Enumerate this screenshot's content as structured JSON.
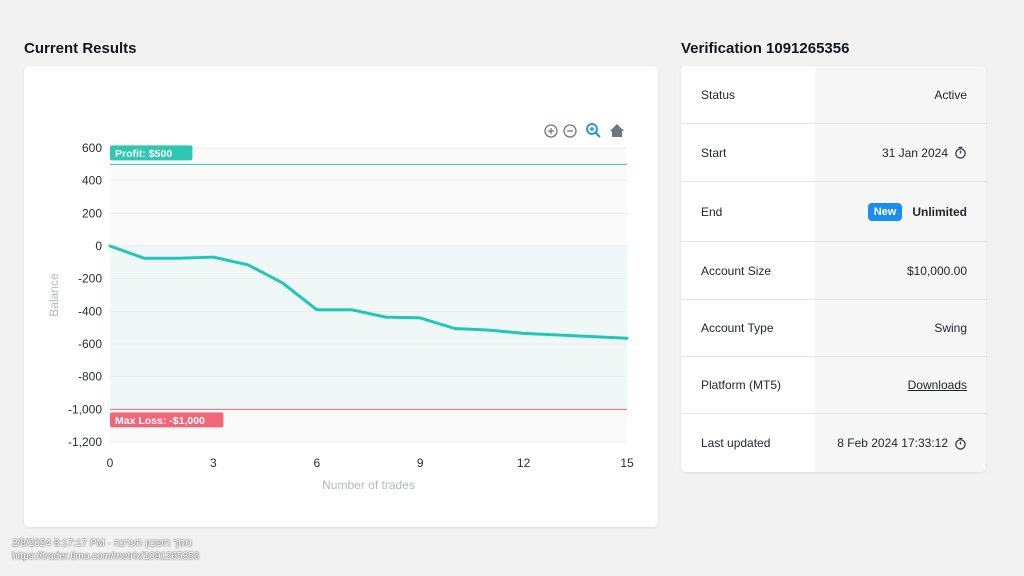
{
  "sections": {
    "results_title": "Current Results",
    "verification_title": "Verification 1091265356"
  },
  "toolbar": {
    "icons": [
      "zoom-in-icon",
      "zoom-out-icon",
      "zoom-select-icon",
      "home-reset-icon"
    ]
  },
  "chart_data": {
    "type": "line",
    "x": [
      0,
      1,
      2,
      3,
      4,
      5,
      6,
      7,
      8,
      9,
      10,
      11,
      12,
      13,
      14,
      15
    ],
    "series": [
      {
        "values": [
          0,
          -75,
          -75,
          -68,
          -115,
          -225,
          -390,
          -390,
          -435,
          -440,
          -505,
          -515,
          -535,
          -545,
          -555,
          -565
        ]
      }
    ],
    "xlabel": "Number of trades",
    "ylabel": "Balance",
    "xlim": [
      0,
      15
    ],
    "ylim": [
      -1200,
      600
    ],
    "xticks": [
      "0",
      "3",
      "6",
      "9",
      "12",
      "15"
    ],
    "yticks": [
      "600",
      "400",
      "200",
      "0",
      "-200",
      "-400",
      "-600",
      "-800",
      "-1,000",
      "-1,200"
    ],
    "annotations": [
      {
        "label": "Profit: $500",
        "y": 500,
        "color": "#2ec8b2"
      },
      {
        "label": "Max Loss: -$1,000",
        "y": -1000,
        "color": "#f0677a"
      }
    ],
    "line_color": "#1fc8b4",
    "grid": true
  },
  "verification": {
    "rows": [
      {
        "label": "Status",
        "value": "Active"
      },
      {
        "label": "Start",
        "value": "31 Jan 2024",
        "icon": "stopwatch-icon"
      },
      {
        "label": "End",
        "badge": "New",
        "value": "Unlimited"
      },
      {
        "label": "Account Size",
        "value": "$10,000.00"
      },
      {
        "label": "Account Type",
        "value": "Swing"
      },
      {
        "label": "Platform (MT5)",
        "value": "Downloads"
      },
      {
        "label": "Last updated",
        "value": "8 Feb 2024 17:33:12",
        "icon": "stopwatch-icon"
      }
    ]
  },
  "footer": {
    "line1": "2/8/2024 8:17:17 PM · מסך חשבון הערכה",
    "line2": "https://trader.tlmo.com/metrix/1091265356"
  }
}
